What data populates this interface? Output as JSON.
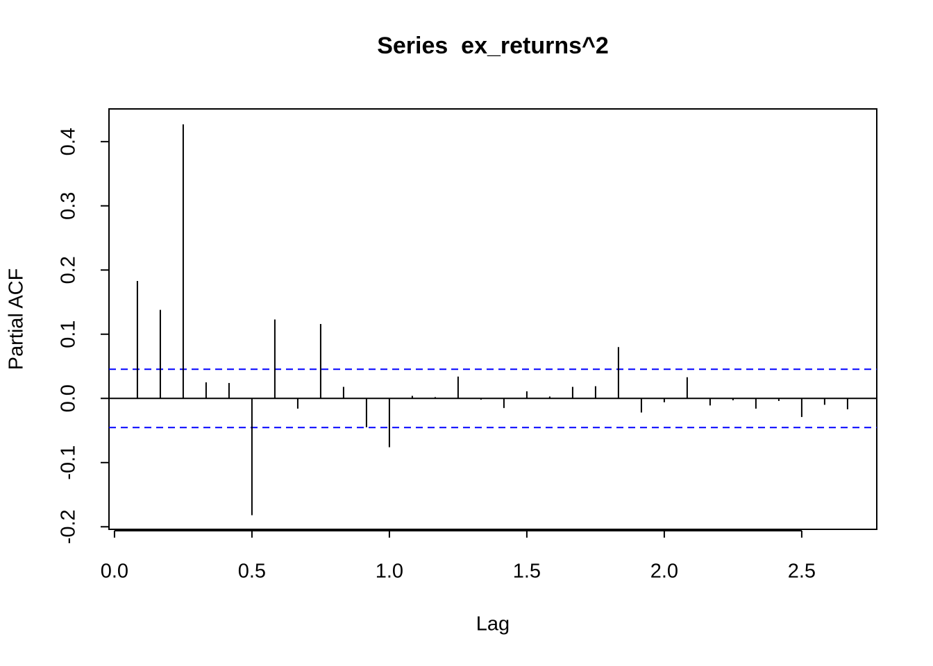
{
  "chart_data": {
    "type": "pacf",
    "title": "Series  ex_returns^2",
    "xlabel": "Lag",
    "ylabel": "Partial ACF",
    "x": [
      0.0833,
      0.1667,
      0.25,
      0.3333,
      0.4167,
      0.5,
      0.5833,
      0.6667,
      0.75,
      0.8333,
      0.9167,
      1.0,
      1.0833,
      1.1667,
      1.25,
      1.3333,
      1.4167,
      1.5,
      1.5833,
      1.6667,
      1.75,
      1.8333,
      1.9167,
      2.0,
      2.0833,
      2.1667,
      2.25,
      2.3333,
      2.4167,
      2.5,
      2.5833,
      2.6667
    ],
    "values": [
      0.183,
      0.138,
      0.427,
      0.025,
      0.024,
      -0.182,
      0.123,
      -0.016,
      0.116,
      0.018,
      -0.045,
      -0.076,
      0.004,
      0.002,
      0.034,
      -0.002,
      -0.015,
      0.011,
      0.003,
      0.018,
      0.019,
      0.08,
      -0.022,
      -0.006,
      0.033,
      -0.011,
      -0.003,
      -0.016,
      -0.004,
      -0.029,
      -0.01,
      -0.017
    ],
    "color": "#000000",
    "ci_lines": {
      "values": [
        0.0454,
        -0.0454
      ],
      "color": "#0000ff"
    },
    "xlim": [
      -0.02,
      2.773
    ],
    "ylim": [
      -0.204,
      0.451
    ],
    "xticks": [
      {
        "value": 0,
        "label": "0.0"
      },
      0.5,
      {
        "value": 1,
        "label": "1.0"
      },
      1.5,
      {
        "value": 2,
        "label": "2.0"
      },
      2.5
    ],
    "yticks": [
      -0.2,
      -0.1,
      {
        "value": 0,
        "label": "0.0"
      },
      0.1,
      0.2,
      0.3,
      0.4
    ]
  }
}
